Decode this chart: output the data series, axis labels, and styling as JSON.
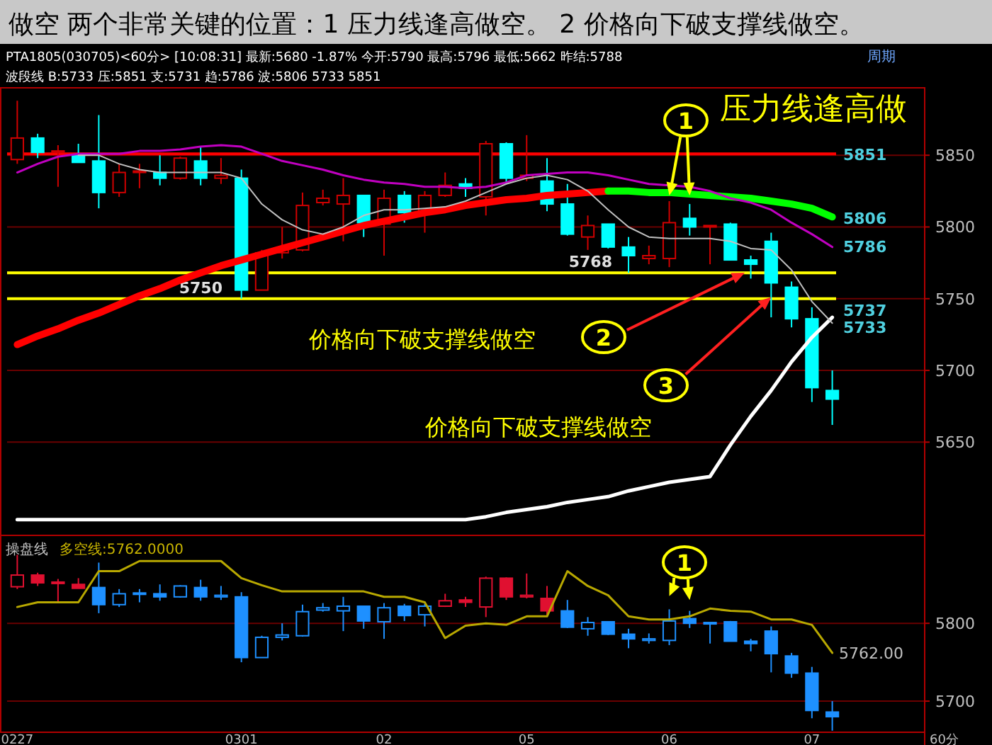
{
  "chart_data": [
    {
      "type": "candlestick",
      "title": "做空 两个非常关键的位置：1 压力线逢高做空。 2 价格向下破支撑线做空。",
      "categories": [
        null,
        null,
        null,
        null,
        null,
        null,
        null,
        null,
        null,
        null,
        null,
        null,
        null,
        null,
        null,
        null,
        null,
        null,
        null,
        null,
        null,
        null,
        null,
        null,
        null,
        null,
        null,
        null,
        null,
        null,
        null,
        null,
        null,
        null,
        null,
        null,
        null,
        null,
        null,
        null,
        null
      ],
      "ohlc": [
        [
          5847,
          5888,
          5844,
          5862
        ],
        [
          5862,
          5865,
          5848,
          5852
        ],
        [
          5852,
          5857,
          5828,
          5853
        ],
        [
          5850,
          5858,
          5845,
          5845
        ],
        [
          5846,
          5878,
          5813,
          5824
        ],
        [
          5824,
          5844,
          5821,
          5838
        ],
        [
          5838,
          5844,
          5827,
          5839
        ],
        [
          5838,
          5850,
          5829,
          5834
        ],
        [
          5834,
          5849,
          5833,
          5848
        ],
        [
          5846,
          5856,
          5829,
          5834
        ],
        [
          5834,
          5848,
          5830,
          5836
        ],
        [
          5834,
          5840,
          5750,
          5756
        ],
        [
          5756,
          5784,
          5756,
          5782
        ],
        [
          5782,
          5800,
          5778,
          5785
        ],
        [
          5784,
          5824,
          5783,
          5815
        ],
        [
          5817,
          5826,
          5815,
          5820
        ],
        [
          5816,
          5834,
          5790,
          5822
        ],
        [
          5822,
          5822,
          5793,
          5803
        ],
        [
          5802,
          5826,
          5780,
          5820
        ],
        [
          5822,
          5825,
          5803,
          5810
        ],
        [
          5811,
          5825,
          5796,
          5822
        ],
        [
          5822,
          5838,
          5821,
          5829
        ],
        [
          5830,
          5834,
          5821,
          5827
        ],
        [
          5821,
          5860,
          5808,
          5858
        ],
        [
          5858,
          5859,
          5830,
          5834
        ],
        [
          5834,
          5864,
          5832,
          5836
        ],
        [
          5832,
          5848,
          5811,
          5816
        ],
        [
          5816,
          5830,
          5794,
          5795
        ],
        [
          5793,
          5808,
          5784,
          5801
        ],
        [
          5802,
          5802,
          5785,
          5786
        ],
        [
          5786,
          5793,
          5768,
          5780
        ],
        [
          5778,
          5787,
          5774,
          5780
        ],
        [
          5778,
          5818,
          5772,
          5803
        ],
        [
          5806,
          5816,
          5794,
          5800
        ],
        [
          5800,
          5801,
          5774,
          5801
        ],
        [
          5802,
          5803,
          5777,
          5777
        ],
        [
          5777,
          5780,
          5764,
          5774
        ],
        [
          5790,
          5796,
          5737,
          5761
        ],
        [
          5758,
          5762,
          5730,
          5736
        ],
        [
          5736,
          5744,
          5678,
          5688
        ],
        [
          5686,
          5700,
          5662,
          5680
        ]
      ],
      "colors": [
        "#d00000",
        "#00ffff",
        "#d00000",
        "#00ffff",
        "#00ffff",
        "#d00000",
        "#d00000",
        "#00ffff",
        "#d00000",
        "#00ffff",
        "#d00000",
        "#00ffff",
        "#d00000",
        "#d00000",
        "#d00000",
        "#d00000",
        "#d00000",
        "#00ffff",
        "#d00000",
        "#00ffff",
        "#d00000",
        "#d00000",
        "#00ffff",
        "#d00000",
        "#00ffff",
        "#d00000",
        "#00ffff",
        "#00ffff",
        "#d00000",
        "#00ffff",
        "#00ffff",
        "#d00000",
        "#d00000",
        "#00ffff",
        "#d00000",
        "#00ffff",
        "#00ffff",
        "#00ffff",
        "#00ffff",
        "#00ffff",
        "#00ffff"
      ],
      "series": [
        {
          "type": "line",
          "color": "#c0c0c0",
          "values": [
            null,
            null,
            null,
            5850,
            5850,
            5844,
            5840,
            5838,
            5838,
            5838,
            5838,
            5834,
            5816,
            5805,
            5798,
            5795,
            5800,
            5808,
            5812,
            5812,
            5813,
            5814,
            5818,
            5824,
            5830,
            5834,
            5836,
            5833,
            5825,
            5812,
            5800,
            5793,
            5792,
            5792,
            5792,
            5790,
            5785,
            5784,
            5770,
            5748,
            5733
          ]
        },
        {
          "type": "line",
          "color": "#c000c0",
          "values": [
            5838,
            5844,
            5849,
            5851,
            5851,
            5851,
            5853,
            5853,
            5854,
            5856,
            5857,
            5856,
            5851,
            5846,
            5843,
            5840,
            5836,
            5833,
            5831,
            5830,
            5828,
            5828,
            5827,
            5828,
            5831,
            5836,
            5837,
            5838,
            5838,
            5836,
            5833,
            5830,
            5829,
            5828,
            5825,
            5820,
            5817,
            5812,
            5803,
            5795,
            5786
          ]
        },
        {
          "type": "line",
          "color": "#ff0000",
          "values": [
            5718,
            5724,
            5729,
            5735,
            5740,
            5746,
            5752,
            5757,
            5763,
            5768,
            5773,
            5777,
            5781,
            5785,
            5789,
            5793,
            5797,
            5801,
            5804,
            5807,
            5810,
            5812,
            5815,
            5817,
            5819,
            5820,
            5822,
            5823,
            5824,
            5825,
            null,
            null,
            null,
            null,
            null,
            null,
            null,
            null,
            null,
            null,
            null
          ]
        },
        {
          "type": "line",
          "color": "#00ff00",
          "values": [
            null,
            null,
            null,
            null,
            null,
            null,
            null,
            null,
            null,
            null,
            null,
            null,
            null,
            null,
            null,
            null,
            null,
            null,
            null,
            null,
            null,
            null,
            null,
            null,
            null,
            null,
            null,
            null,
            null,
            5825,
            5825,
            5824,
            5824,
            5823,
            5822,
            5821,
            5820,
            5818,
            5816,
            5813,
            5807
          ]
        },
        {
          "type": "line",
          "color": "#ffffff",
          "values": [
            5596,
            5596,
            5596,
            5596,
            5596,
            5596,
            5596,
            5596,
            5596,
            5596,
            5596,
            5596,
            5596,
            5596,
            5596,
            5596,
            5596,
            5596,
            5596,
            5596,
            5596,
            5596,
            5596,
            5598,
            5601,
            5603,
            5605,
            5608,
            5610,
            5612,
            5616,
            5619,
            5622,
            5624,
            5626,
            5648,
            5668,
            5686,
            5706,
            5723,
            5737
          ]
        }
      ],
      "ylim": [
        5585,
        5897
      ],
      "yticks": [
        5850,
        5800,
        5750,
        5700,
        5650
      ],
      "grid": "y",
      "tick_labels": "y",
      "ref_lines": [
        {
          "axis": "y",
          "value": 5851,
          "color": "#ff0000"
        },
        {
          "axis": "y",
          "value": 5768,
          "label": "5768",
          "color": "#ffff00"
        },
        {
          "axis": "y",
          "value": 5750,
          "label": "5750",
          "color": "#ffff00"
        }
      ],
      "annotations": [
        "PTA1805(030705)<60分>  [10:08:31] 最新:5680 -1.87% 今开:5790 最高:5796 最低:5662 昨结:5788",
        "周期",
        "波段线 B:5733 压:5851 支:5731 趋:5786 波:5806 5733 5851",
        "压力线逢高做",
        "1",
        "2",
        "3",
        "价格向下破支撑线做空",
        "价格向下破支撑线做空",
        "5851",
        "5806",
        "5786",
        "5737",
        "5733"
      ]
    },
    {
      "type": "candlestick",
      "categories": [
        "0227",
        null,
        null,
        null,
        null,
        null,
        null,
        null,
        null,
        null,
        null,
        "0301",
        null,
        null,
        null,
        null,
        null,
        null,
        "02",
        null,
        null,
        null,
        null,
        null,
        null,
        "05",
        null,
        null,
        null,
        null,
        null,
        null,
        "06",
        null,
        null,
        null,
        null,
        null,
        null,
        "07",
        null
      ],
      "ohlc": [
        [
          5847,
          5888,
          5844,
          5862
        ],
        [
          5862,
          5865,
          5848,
          5852
        ],
        [
          5852,
          5857,
          5828,
          5853
        ],
        [
          5850,
          5858,
          5845,
          5845
        ],
        [
          5846,
          5878,
          5813,
          5824
        ],
        [
          5824,
          5844,
          5821,
          5838
        ],
        [
          5838,
          5844,
          5827,
          5839
        ],
        [
          5838,
          5850,
          5829,
          5834
        ],
        [
          5834,
          5849,
          5833,
          5848
        ],
        [
          5846,
          5856,
          5829,
          5834
        ],
        [
          5834,
          5848,
          5830,
          5836
        ],
        [
          5834,
          5840,
          5750,
          5756
        ],
        [
          5756,
          5784,
          5756,
          5782
        ],
        [
          5782,
          5800,
          5778,
          5785
        ],
        [
          5784,
          5824,
          5783,
          5815
        ],
        [
          5817,
          5826,
          5815,
          5820
        ],
        [
          5816,
          5834,
          5790,
          5822
        ],
        [
          5822,
          5822,
          5793,
          5803
        ],
        [
          5802,
          5826,
          5780,
          5820
        ],
        [
          5822,
          5825,
          5803,
          5810
        ],
        [
          5811,
          5825,
          5796,
          5822
        ],
        [
          5822,
          5838,
          5821,
          5829
        ],
        [
          5830,
          5834,
          5821,
          5827
        ],
        [
          5821,
          5860,
          5808,
          5858
        ],
        [
          5858,
          5859,
          5830,
          5834
        ],
        [
          5834,
          5864,
          5832,
          5836
        ],
        [
          5832,
          5848,
          5811,
          5816
        ],
        [
          5816,
          5830,
          5794,
          5795
        ],
        [
          5793,
          5808,
          5784,
          5801
        ],
        [
          5802,
          5802,
          5785,
          5786
        ],
        [
          5786,
          5793,
          5768,
          5780
        ],
        [
          5778,
          5787,
          5774,
          5780
        ],
        [
          5778,
          5818,
          5772,
          5803
        ],
        [
          5806,
          5816,
          5794,
          5800
        ],
        [
          5800,
          5801,
          5774,
          5801
        ],
        [
          5802,
          5803,
          5777,
          5777
        ],
        [
          5777,
          5780,
          5764,
          5774
        ],
        [
          5790,
          5796,
          5737,
          5761
        ],
        [
          5758,
          5762,
          5730,
          5736
        ],
        [
          5736,
          5744,
          5678,
          5688
        ],
        [
          5686,
          5700,
          5662,
          5680
        ]
      ],
      "colors": [
        "#e01030",
        "#e01030",
        "#e01030",
        "#e01030",
        "#1e90ff",
        "#1e90ff",
        "#1e90ff",
        "#1e90ff",
        "#1e90ff",
        "#1e90ff",
        "#1e90ff",
        "#1e90ff",
        "#1e90ff",
        "#1e90ff",
        "#1e90ff",
        "#1e90ff",
        "#1e90ff",
        "#1e90ff",
        "#1e90ff",
        "#1e90ff",
        "#1e90ff",
        "#e01030",
        "#e01030",
        "#e01030",
        "#e01030",
        "#e01030",
        "#e01030",
        "#1e90ff",
        "#1e90ff",
        "#1e90ff",
        "#1e90ff",
        "#1e90ff",
        "#1e90ff",
        "#1e90ff",
        "#1e90ff",
        "#1e90ff",
        "#1e90ff",
        "#1e90ff",
        "#1e90ff",
        "#1e90ff",
        "#1e90ff"
      ],
      "series": [
        {
          "type": "line",
          "color": "#b8a800",
          "values": [
            5821,
            5827,
            5827,
            5827,
            5867,
            5867,
            5880,
            5880,
            5880,
            5880,
            5880,
            5858,
            5849,
            5841,
            5841,
            5841,
            5841,
            5841,
            5834,
            5834,
            5827,
            5781,
            5797,
            5800,
            5798,
            5809,
            5809,
            5867,
            5848,
            5836,
            5809,
            5805,
            5805,
            5809,
            5819,
            5816,
            5815,
            5805,
            5805,
            5798,
            5762
          ]
        }
      ],
      "ylim": [
        5660,
        5913
      ],
      "yticks": [
        5800,
        5700
      ],
      "grid": "y",
      "annotations": [
        "操盘线",
        "多空线:5762.0000",
        "1",
        "5762.00",
        "60分"
      ]
    }
  ]
}
